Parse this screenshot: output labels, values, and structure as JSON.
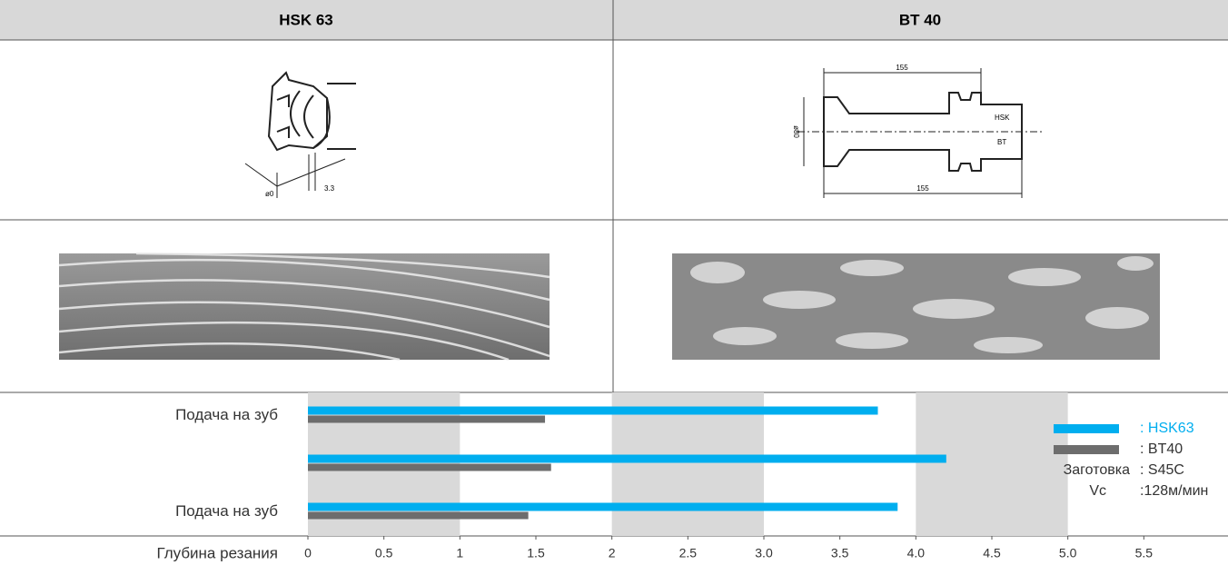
{
  "table": {
    "headers": [
      "HSK 63",
      "BT 40"
    ]
  },
  "drawings": {
    "hsk63": [
      "ø0",
      "3.3"
    ],
    "bt40": [
      "155",
      "155",
      "ø80",
      "HSK",
      "BT"
    ]
  },
  "chart_data": {
    "type": "hbar",
    "categories": [
      "Подача на зуб",
      null,
      "Подача на зуб"
    ],
    "series": [
      {
        "name": ": HSK63",
        "color": "#00aeef",
        "values": [
          3.75,
          4.2,
          3.88
        ]
      },
      {
        "name": ": BT40",
        "color": "#6d6d6d",
        "values": [
          1.56,
          1.6,
          1.45
        ]
      }
    ],
    "xlabel": "Глубина резания",
    "xlim": [
      0,
      6
    ],
    "xticks": [
      0,
      0.5,
      1,
      1.5,
      2,
      2.5,
      {
        "value": 3,
        "label": "3.0"
      },
      3.5,
      {
        "value": 4,
        "label": "4.0"
      },
      4.5,
      {
        "value": 5,
        "label": "5.0"
      },
      5.5
    ],
    "notes": [
      {
        "label": "Заготовка",
        "value": ": S45C"
      },
      {
        "label": "Vc",
        "value": ":128м/мин"
      }
    ]
  }
}
